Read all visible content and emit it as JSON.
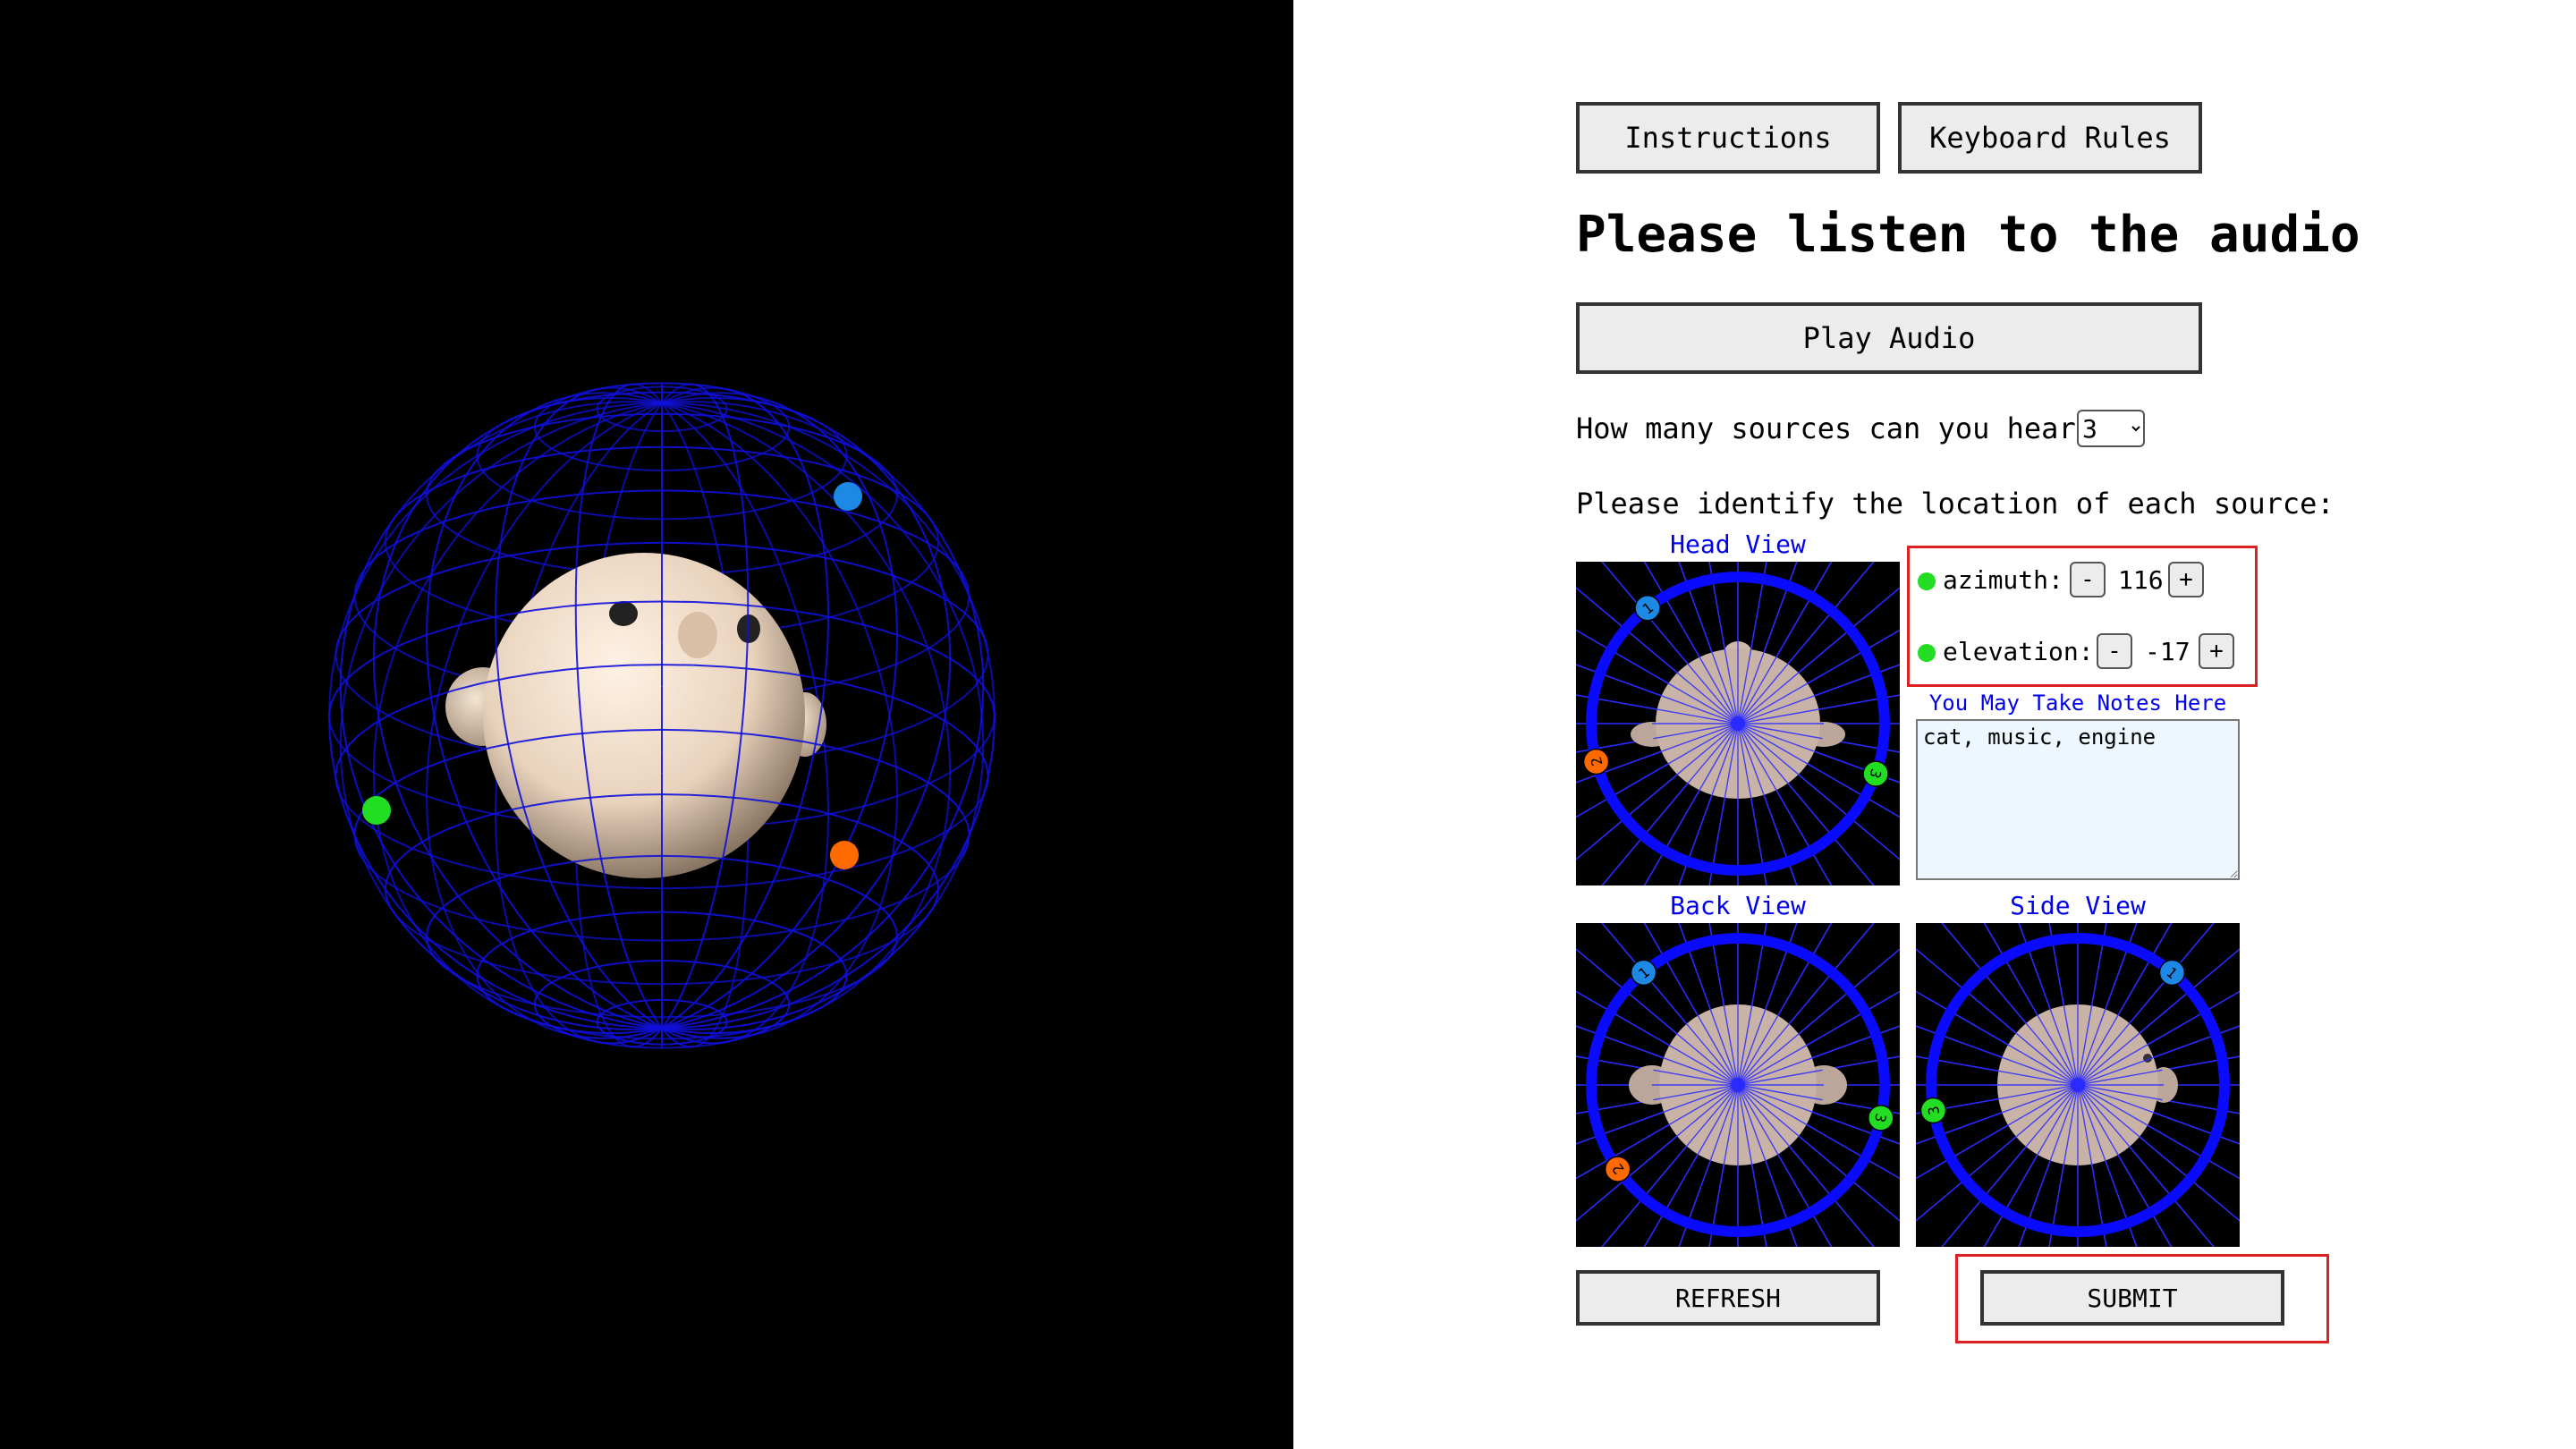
{
  "toolbar": {
    "instructions_label": "Instructions",
    "keyboard_rules_label": "Keyboard Rules"
  },
  "heading": "Please listen to the audio",
  "play_audio_label": "Play Audio",
  "sources_question": "How many sources can you hear?",
  "sources_select": {
    "selected": "3"
  },
  "identify_prompt": "Please identify the location of each source:",
  "views": {
    "head": "Head View",
    "back": "Back View",
    "side": "Side View"
  },
  "controls": {
    "azimuth_label": "azimuth:",
    "azimuth_value": "116",
    "elevation_label": "elevation:",
    "elevation_value": "-17",
    "minus": "-",
    "plus": "+"
  },
  "notes": {
    "title": "You May Take Notes Here",
    "value": "cat, music, engine"
  },
  "footer": {
    "refresh_label": "REFRESH",
    "submit_label": "SUBMIT"
  },
  "markers": [
    {
      "label": "1",
      "color": "#1e88e5"
    },
    {
      "label": "2",
      "color": "#ff6a00"
    },
    {
      "label": "3",
      "color": "#22dd22"
    }
  ],
  "colors": {
    "accent": "#0000ee",
    "wire": "#1010dd",
    "highlight": "#e02020",
    "selected_dot": "#22dd22"
  }
}
